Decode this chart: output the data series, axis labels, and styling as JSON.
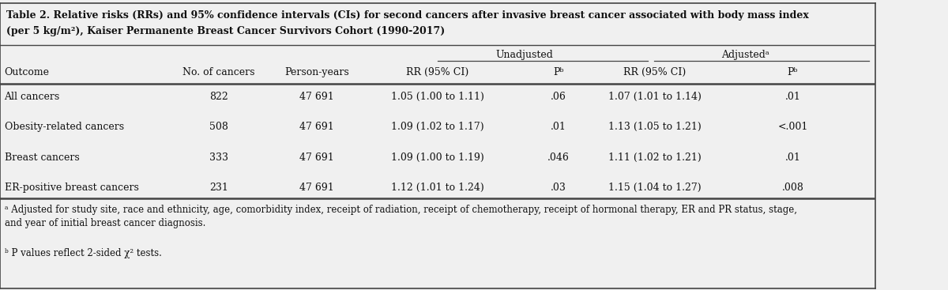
{
  "title_line1": "Table 2. Relative risks (RRs) and 95% confidence intervals (CIs) for second cancers after invasive breast cancer associated with body mass index",
  "title_line2": "(per 5 kg/m²), Kaiser Permanente Breast Cancer Survivors Cohort (1990-2017)",
  "group_headers": [
    "Unadjusted",
    "Adjustedᵃ"
  ],
  "col_headers": [
    "Outcome",
    "No. of cancers",
    "Person-years",
    "RR (95% CI)",
    "Pᵇ",
    "RR (95% CI)",
    "Pᵇ"
  ],
  "rows": [
    [
      "All cancers",
      "822",
      "47 691",
      "1.05 (1.00 to 1.11)",
      ".06",
      "1.07 (1.01 to 1.14)",
      ".01"
    ],
    [
      "Obesity-related cancers",
      "508",
      "47 691",
      "1.09 (1.02 to 1.17)",
      ".01",
      "1.13 (1.05 to 1.21)",
      "<.001"
    ],
    [
      "Breast cancers",
      "333",
      "47 691",
      "1.09 (1.00 to 1.19)",
      ".046",
      "1.11 (1.02 to 1.21)",
      ".01"
    ],
    [
      "ER-positive breast cancers",
      "231",
      "47 691",
      "1.12 (1.01 to 1.24)",
      ".03",
      "1.15 (1.04 to 1.27)",
      ".008"
    ]
  ],
  "footnote_a": "ᵃ Adjusted for study site, race and ethnicity, age, comorbidity index, receipt of radiation, receipt of chemotherapy, receipt of hormonal therapy, ER and PR status, stage,\nand year of initial breast cancer diagnosis.",
  "footnote_b": "ᵇ P values reflect 2-sided χ² tests.",
  "bg_color": "#f0f0f0",
  "border_color": "#444444",
  "text_color": "#111111",
  "font_size": 9.0,
  "title_font_size": 9.0
}
